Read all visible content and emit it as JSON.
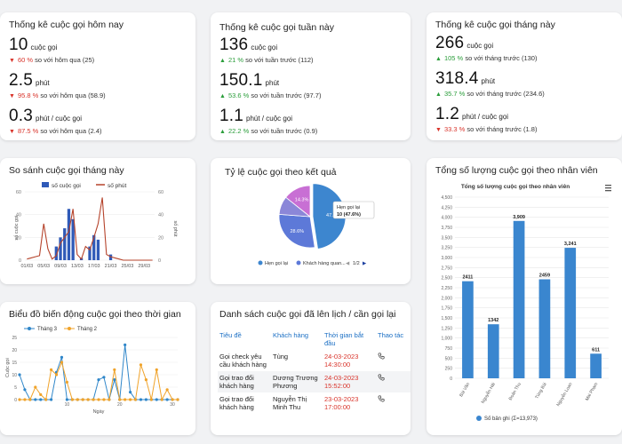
{
  "today": {
    "title": "Thống kê cuộc gọi hôm nay",
    "stats": [
      {
        "value": "10",
        "unit": "cuộc gọi",
        "change": "60 %",
        "dir": "down",
        "compare": "so với hôm qua (25)"
      },
      {
        "value": "2.5",
        "unit": "phút",
        "change": "95.8 %",
        "dir": "down",
        "compare": "so với hôm qua (58.9)"
      },
      {
        "value": "0.3",
        "unit": "phút / cuộc gọi",
        "change": "87.5 %",
        "dir": "down",
        "compare": "so với hôm qua (2.4)"
      }
    ]
  },
  "week": {
    "title": "Thống kê cuộc gọi tuần này",
    "stats": [
      {
        "value": "136",
        "unit": "cuộc gọi",
        "change": "21 %",
        "dir": "up",
        "compare": "so với tuần trước (112)"
      },
      {
        "value": "150.1",
        "unit": "phút",
        "change": "53.6 %",
        "dir": "up",
        "compare": "so với tuần trước (97.7)"
      },
      {
        "value": "1.1",
        "unit": "phút / cuộc gọi",
        "change": "22.2 %",
        "dir": "up",
        "compare": "so với tuần trước (0.9)"
      }
    ]
  },
  "month": {
    "title": "Thống kê cuộc gọi tháng này",
    "stats": [
      {
        "value": "266",
        "unit": "cuộc gọi",
        "change": "105 %",
        "dir": "up",
        "compare": "so với tháng trước (130)"
      },
      {
        "value": "318.4",
        "unit": "phút",
        "change": "35.7 %",
        "dir": "up",
        "compare": "so với tháng trước (234.6)"
      },
      {
        "value": "1.2",
        "unit": "phút / cuộc gọi",
        "change": "33.3 %",
        "dir": "down",
        "compare": "so với tháng trước (1.8)"
      }
    ]
  },
  "compare_card": {
    "title": "So sánh cuộc gọi tháng này"
  },
  "result_card": {
    "title": "Tỷ lệ cuộc gọi theo kết quả"
  },
  "staff_card": {
    "title": "Tổng số lượng cuộc gọi theo nhân viên"
  },
  "timeline_card": {
    "title": "Biểu đồ biến động cuộc gọi theo thời gian"
  },
  "schedule": {
    "title": "Danh sách cuộc gọi đã lên lịch / cần gọi lại",
    "headers": [
      "Tiêu đề",
      "Khách hàng",
      "Thời gian bắt đầu",
      "Thao tác"
    ],
    "rows": [
      {
        "title": "Gọi check yêu cầu khách hàng",
        "customer": "Tùng",
        "time": "24-03-2023 14:30:00"
      },
      {
        "title": "Gọi trao đổi khách hàng",
        "customer": "Dương Trương Phương",
        "time": "24-03-2023 15:52:00"
      },
      {
        "title": "Gọi trao đổi khách hàng",
        "customer": "Nguyễn Thị Minh Thu",
        "time": "23-03-2023 17:00:00"
      }
    ],
    "action_icon": "phone-icon"
  },
  "chart_data": [
    {
      "type": "bar",
      "id": "compare",
      "legend": [
        "số cuộc gọi",
        "số phút"
      ],
      "ylabel_left": "số cuộc gọi",
      "ylabel_right": "số phút",
      "x_ticks": [
        "01/03",
        "05/03",
        "09/03",
        "13/03",
        "17/03",
        "21/03",
        "25/03",
        "29/03"
      ],
      "y_ticks_left": [
        "0",
        "20",
        "40",
        "60"
      ],
      "y_ticks_right": [
        "0",
        "20",
        "40",
        "60"
      ],
      "ylim": [
        0,
        60
      ],
      "categories": [
        "01/03",
        "02/03",
        "03/03",
        "04/03",
        "05/03",
        "06/03",
        "07/03",
        "08/03",
        "09/03",
        "10/03",
        "11/03",
        "12/03",
        "13/03",
        "14/03",
        "15/03",
        "16/03",
        "17/03",
        "18/03",
        "19/03",
        "20/03",
        "21/03",
        "22/03",
        "23/03",
        "24/03",
        "25/03",
        "26/03",
        "27/03",
        "28/03",
        "29/03",
        "30/03",
        "31/03"
      ],
      "series": [
        {
          "name": "số cuộc gọi",
          "values": [
            0,
            0,
            0,
            0,
            0,
            0,
            0,
            12,
            20,
            28,
            45,
            36,
            0,
            2,
            0,
            12,
            22,
            18,
            0,
            0,
            5,
            0,
            0,
            0,
            0,
            0,
            0,
            0,
            0,
            0,
            0
          ]
        },
        {
          "name": "số phút",
          "values": [
            1,
            2,
            3,
            4,
            32,
            10,
            1,
            4,
            15,
            20,
            25,
            45,
            5,
            1,
            12,
            9,
            20,
            32,
            55,
            5,
            3,
            2,
            1,
            0,
            0,
            0,
            0,
            0,
            0,
            0,
            0
          ]
        }
      ],
      "colors": [
        "#2f5ab8",
        "#b5432b"
      ]
    },
    {
      "type": "pie",
      "id": "result",
      "slices": [
        {
          "name": "Hẹn gọi lại",
          "value": 47.6,
          "label": "47.6%",
          "color": "#3d86cf"
        },
        {
          "name": "Khách hàng quan...",
          "value": 28.6,
          "label": "28.6%",
          "color": "#5d79d8"
        },
        {
          "name": "",
          "value": 9.5,
          "label": "",
          "color": "#8b87d8"
        },
        {
          "name": "",
          "value": 14.3,
          "label": "14.3%",
          "color": "#c86fd4"
        }
      ],
      "tooltip": {
        "title": "Hẹn gọi lại",
        "value": "10 (47.6%)"
      },
      "legend": [
        "Hẹn gọi lại",
        "Khách hàng quan..."
      ],
      "pager": "1/2"
    },
    {
      "type": "bar",
      "id": "staff",
      "title": "Tổng số lượng cuộc gọi theo nhân viên",
      "categories": [
        "Bùi Văn",
        "Nguyễn Hải",
        "Đoàn Thu",
        "Tùng Bùi",
        "Nguyễn Loan",
        "Mai Phạm"
      ],
      "values": [
        2411,
        1342,
        3909,
        2459,
        3241,
        611
      ],
      "value_labels": [
        "2411",
        "1342",
        "3,909",
        "2459",
        "3,241",
        "611"
      ],
      "y_ticks": [
        "0",
        "250",
        "500",
        "750",
        "1,000",
        "1,250",
        "1,500",
        "1,750",
        "2,000",
        "2,250",
        "2,500",
        "2,750",
        "3,000",
        "3,250",
        "3,500",
        "3,750",
        "4,000",
        "4,250",
        "4,500"
      ],
      "ylim": [
        0,
        4500
      ],
      "legend": "Số bản ghi (Σ=13,973)",
      "color": "#3a86cf"
    },
    {
      "type": "line",
      "id": "timeline",
      "legend": [
        "Tháng 3",
        "Tháng 2"
      ],
      "xlabel": "Ngày",
      "ylabel": "Cuộc gọi",
      "x_ticks": [
        "10",
        "20",
        "30"
      ],
      "y_ticks": [
        "0",
        "5",
        "10",
        "15",
        "20",
        "25"
      ],
      "ylim": [
        0,
        25
      ],
      "x": [
        1,
        2,
        3,
        4,
        5,
        6,
        7,
        8,
        9,
        10,
        11,
        12,
        13,
        14,
        15,
        16,
        17,
        18,
        19,
        20,
        21,
        22,
        23,
        24,
        25,
        26,
        27,
        28,
        29,
        30,
        31
      ],
      "series": [
        {
          "name": "Tháng 3",
          "color": "#2f86c9",
          "values": [
            10,
            4,
            0,
            0,
            0,
            0,
            0,
            11,
            17,
            0,
            0,
            0,
            0,
            0,
            0,
            8,
            9,
            0,
            8,
            0,
            22,
            3,
            0,
            0,
            0,
            0,
            0,
            0,
            0,
            0,
            0
          ]
        },
        {
          "name": "Tháng 2",
          "color": "#f0a32a",
          "values": [
            0,
            0,
            0,
            5,
            2,
            0,
            12,
            10,
            15,
            7,
            0,
            0,
            0,
            0,
            0,
            0,
            0,
            0,
            12,
            0,
            0,
            0,
            0,
            14,
            8,
            0,
            12,
            0,
            4,
            0,
            0
          ]
        }
      ]
    }
  ]
}
